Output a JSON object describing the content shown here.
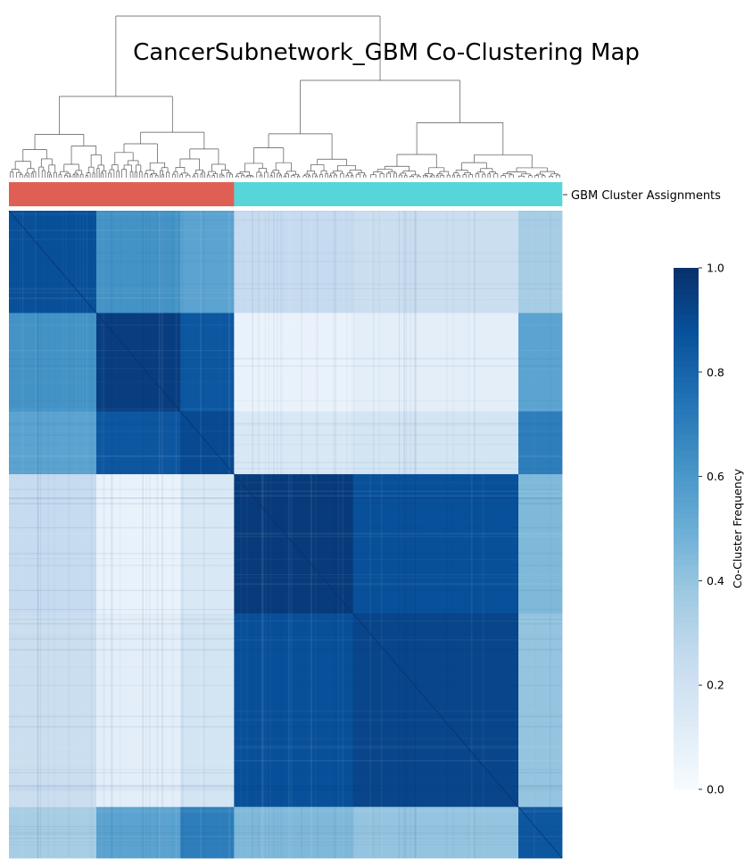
{
  "chart_data": {
    "type": "heatmap",
    "title": "CancerSubnetwork_GBM Co-Clustering Map",
    "row_color_label": "GBM Cluster Assignments",
    "colorbar": {
      "label": "Co-Cluster Frequency",
      "range": [
        0.0,
        1.0
      ],
      "ticks": [
        "0.0",
        "0.2",
        "0.4",
        "0.6",
        "0.8",
        "1.0"
      ],
      "colormap": "Blues"
    },
    "clusters": [
      {
        "id": 1,
        "color": "#e05f55",
        "fraction": 0.407
      },
      {
        "id": 2,
        "color": "#57d6da",
        "fraction": 0.593
      }
    ],
    "blocks": [
      {
        "fraction": 0.158
      },
      {
        "fraction": 0.152
      },
      {
        "fraction": 0.097
      },
      {
        "fraction": 0.215
      },
      {
        "fraction": 0.299
      },
      {
        "fraction": 0.079
      }
    ],
    "block_matrix": [
      [
        0.88,
        0.62,
        0.55,
        0.25,
        0.23,
        0.35
      ],
      [
        0.62,
        0.95,
        0.85,
        0.07,
        0.1,
        0.55
      ],
      [
        0.55,
        0.85,
        0.9,
        0.15,
        0.18,
        0.7
      ],
      [
        0.25,
        0.07,
        0.15,
        0.96,
        0.88,
        0.45
      ],
      [
        0.23,
        0.1,
        0.18,
        0.88,
        0.92,
        0.4
      ],
      [
        0.35,
        0.55,
        0.7,
        0.45,
        0.4,
        0.85
      ]
    ]
  }
}
